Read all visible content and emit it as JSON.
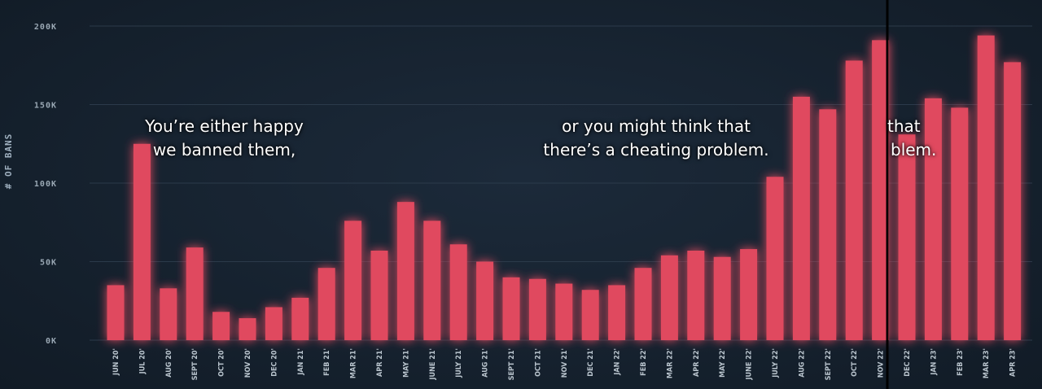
{
  "chart_data": {
    "type": "bar",
    "ylabel": "# OF BANS",
    "yticks": [
      "0K",
      "50K",
      "100K",
      "150K",
      "200K"
    ],
    "ylim": [
      0,
      200000
    ],
    "grid": true,
    "categories": [
      "JUN 20'",
      "JUL 20'",
      "AUG 20'",
      "SEPT 20'",
      "OCT 20'",
      "NOV 20'",
      "DEC 20'",
      "JAN 21'",
      "FEB 21'",
      "MAR 21'",
      "APR 21'",
      "MAY 21'",
      "JUNE 21'",
      "JULY 21'",
      "AUG 21'",
      "SEPT 21'",
      "OCT 21'",
      "NOV 21'",
      "DEC 21'",
      "JAN 22'",
      "FEB 22'",
      "MAR 22'",
      "APR 22'",
      "MAY 22'",
      "JUNE 22'",
      "JULY 22'",
      "AUG 22'",
      "SEPT 22'",
      "OCT 22'",
      "NOV 22'",
      "DEC 22'",
      "JAN 23'",
      "FEB 23'",
      "MAR 23'",
      "APR 23'"
    ],
    "values": [
      35000,
      125000,
      33000,
      59000,
      18000,
      14000,
      21000,
      27000,
      46000,
      76000,
      57000,
      88000,
      76000,
      61000,
      50000,
      40000,
      39000,
      36000,
      32000,
      35000,
      46000,
      54000,
      57000,
      53000,
      58000,
      104000,
      155000,
      147000,
      178000,
      191000,
      131000,
      154000,
      148000,
      194000,
      177000
    ],
    "bar_color": "#e0485f"
  },
  "captions": {
    "left_line1": "You’re either happy",
    "left_line2": "we banned them,",
    "mid_line1": "or you might think that",
    "mid_line2": "there’s a cheating problem.",
    "right_line1": "that",
    "right_line2": "blem."
  },
  "colors": {
    "background": "#16222f",
    "grid": "#2b3a4a",
    "bar": "#e0485f",
    "cursor_line": "#000000"
  }
}
